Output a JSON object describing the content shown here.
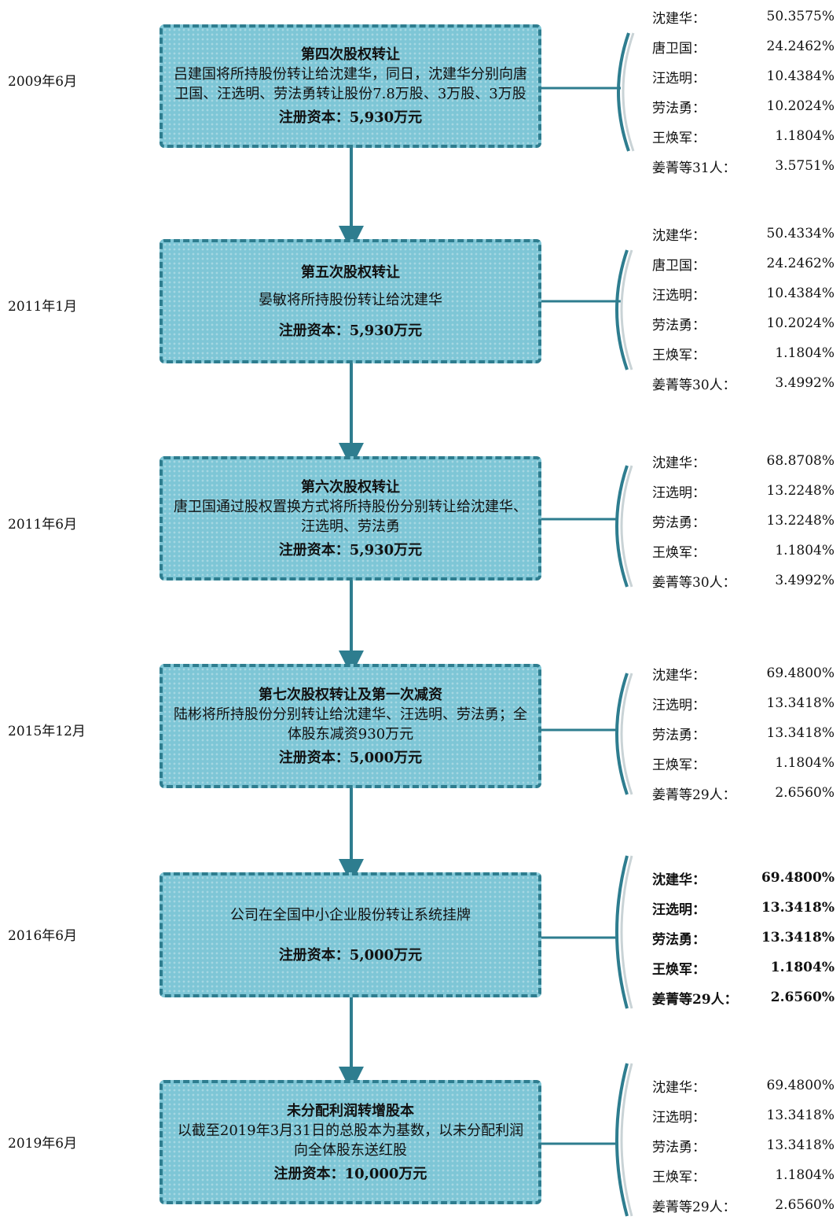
{
  "colors": {
    "accent": "#2e7d8f",
    "box_fill": "#7ec6d6",
    "bracket_shadow": "#c9d3d6"
  },
  "timeline": [
    {
      "date": "2009年6月",
      "title": "第四次股权转让",
      "description": "吕建国将所持股份转让给沈建华，同日，沈建华分别向唐卫国、汪选明、劳法勇转让股份7.8万股、3万股、3万股",
      "capital": "注册资本：5,930万元",
      "holders": [
        {
          "name": "沈建华：",
          "pct": "50.3575%"
        },
        {
          "name": "唐卫国：",
          "pct": "24.2462%"
        },
        {
          "name": "汪选明：",
          "pct": "10.4384%"
        },
        {
          "name": "劳法勇：",
          "pct": "10.2024%"
        },
        {
          "name": "王焕军：",
          "pct": "1.1804%"
        },
        {
          "name": "姜菁等31人：",
          "pct": "3.5751%"
        }
      ]
    },
    {
      "date": "2011年1月",
      "title": "第五次股权转让",
      "description": "晏敏将所持股份转让给沈建华",
      "capital": "注册资本：5,930万元",
      "holders": [
        {
          "name": "沈建华：",
          "pct": "50.4334%"
        },
        {
          "name": "唐卫国：",
          "pct": "24.2462%"
        },
        {
          "name": "汪选明：",
          "pct": "10.4384%"
        },
        {
          "name": "劳法勇：",
          "pct": "10.2024%"
        },
        {
          "name": "王焕军：",
          "pct": "1.1804%"
        },
        {
          "name": "姜菁等30人：",
          "pct": "3.4992%"
        }
      ]
    },
    {
      "date": "2011年6月",
      "title": "第六次股权转让",
      "description": "唐卫国通过股权置换方式将所持股份分别转让给沈建华、汪选明、劳法勇",
      "capital": "注册资本：5,930万元",
      "holders": [
        {
          "name": "沈建华：",
          "pct": "68.8708%"
        },
        {
          "name": "汪选明：",
          "pct": "13.2248%"
        },
        {
          "name": "劳法勇：",
          "pct": "13.2248%"
        },
        {
          "name": "王焕军：",
          "pct": "1.1804%"
        },
        {
          "name": "姜菁等30人：",
          "pct": "3.4992%"
        }
      ]
    },
    {
      "date": "2015年12月",
      "title": "第七次股权转让及第一次减资",
      "description": "陆彬将所持股份分别转让给沈建华、汪选明、劳法勇；全体股东减资930万元",
      "capital": "注册资本：5,000万元",
      "holders": [
        {
          "name": "沈建华：",
          "pct": "69.4800%"
        },
        {
          "name": "汪选明：",
          "pct": "13.3418%"
        },
        {
          "name": "劳法勇：",
          "pct": "13.3418%"
        },
        {
          "name": "王焕军：",
          "pct": "1.1804%"
        },
        {
          "name": "姜菁等29人：",
          "pct": "2.6560%"
        }
      ]
    },
    {
      "date": "2016年6月",
      "title": "",
      "description": "公司在全国中小企业股份转让系统挂牌",
      "capital": "注册资本：5,000万元",
      "holders": [
        {
          "name": "沈建华：",
          "pct": "69.4800%"
        },
        {
          "name": "汪选明：",
          "pct": "13.3418%"
        },
        {
          "name": "劳法勇：",
          "pct": "13.3418%"
        },
        {
          "name": "王焕军：",
          "pct": "1.1804%"
        },
        {
          "name": "姜菁等29人：",
          "pct": "2.6560%"
        }
      ]
    },
    {
      "date": "2019年6月",
      "title": "未分配利润转增股本",
      "description": "以截至2019年3月31日的总股本为基数，以未分配利润向全体股东送红股",
      "capital": "注册资本：10,000万元",
      "holders": [
        {
          "name": "沈建华：",
          "pct": "69.4800%"
        },
        {
          "name": "汪选明：",
          "pct": "13.3418%"
        },
        {
          "name": "劳法勇：",
          "pct": "13.3418%"
        },
        {
          "name": "王焕军：",
          "pct": "1.1804%"
        },
        {
          "name": "姜菁等29人：",
          "pct": "2.6560%"
        }
      ]
    }
  ]
}
